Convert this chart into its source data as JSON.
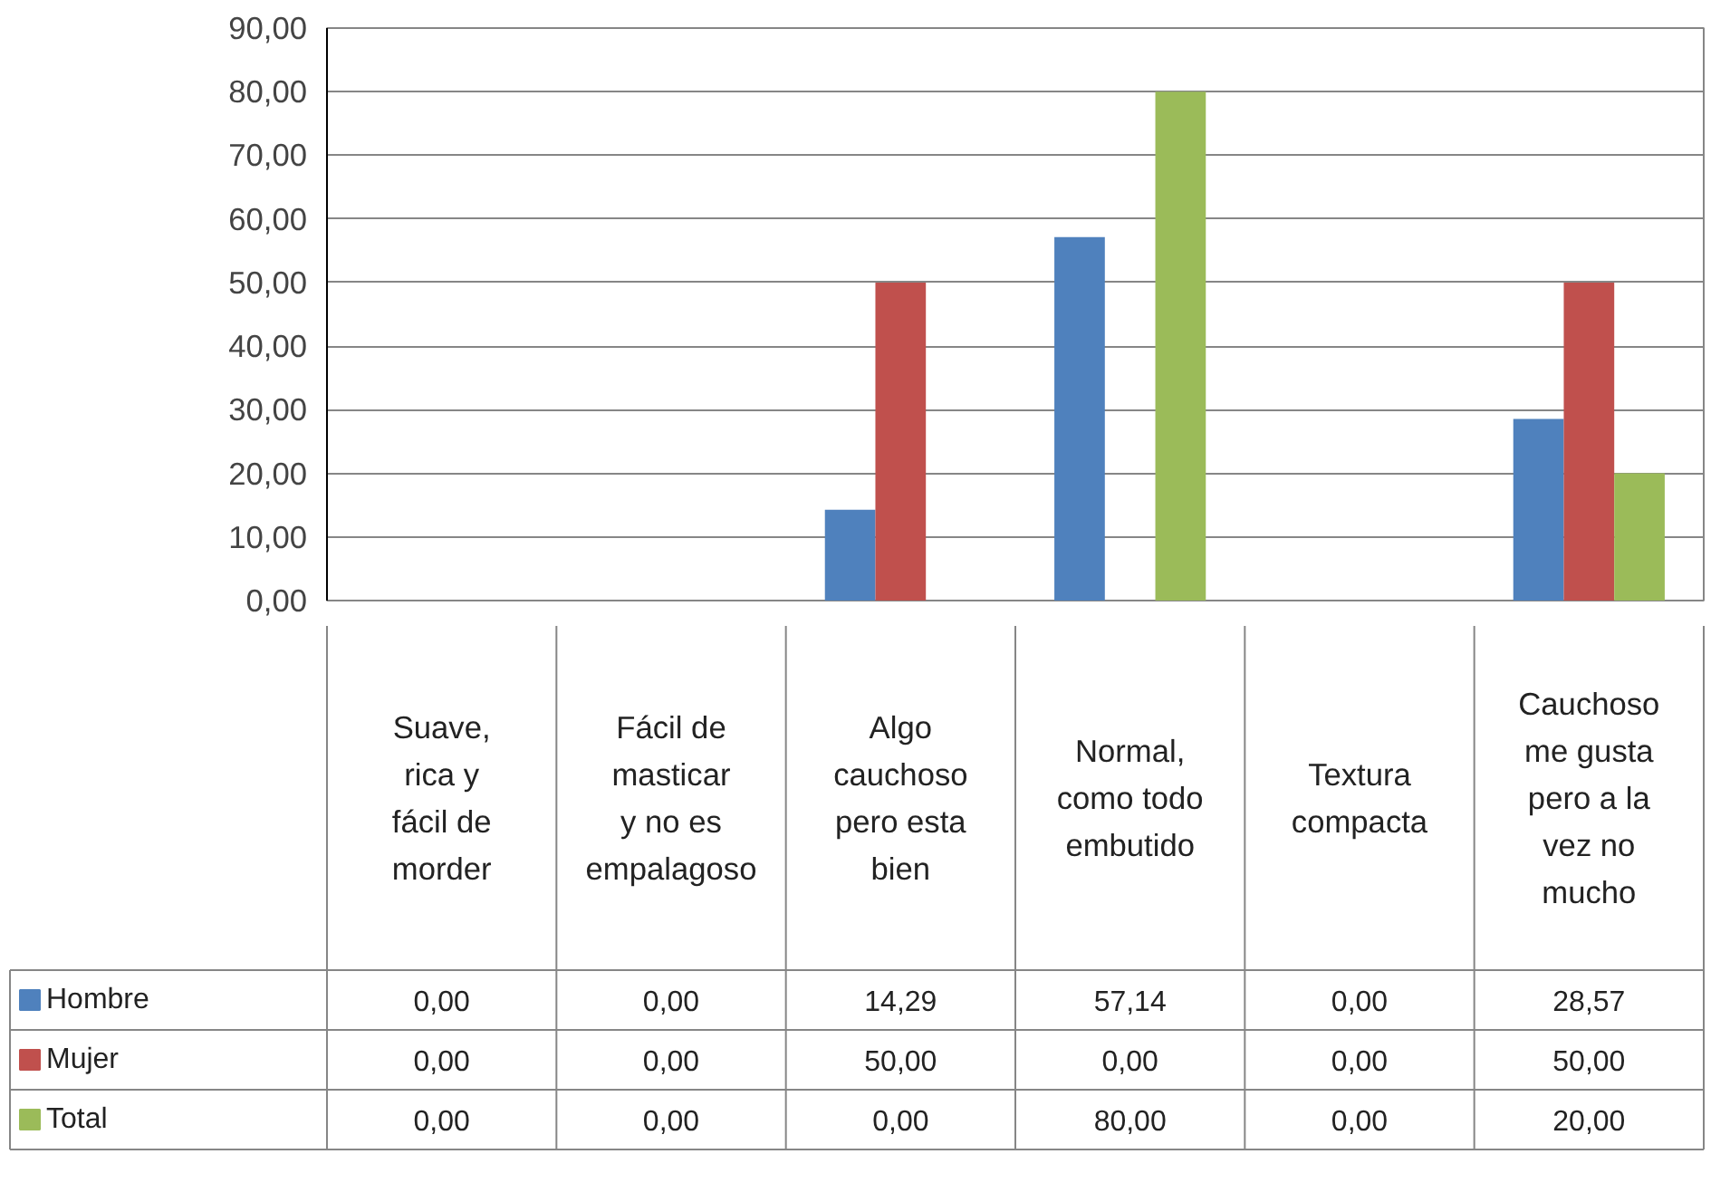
{
  "chart_data": {
    "type": "bar",
    "categories": [
      "Suave, rica y fácil de morder",
      "Fácil de masticar y no es empalagoso",
      "Algo cauchoso pero esta bien",
      "Normal, como todo embutido",
      "Textura compacta",
      "Cauchoso me gusta pero a la vez no mucho"
    ],
    "series": [
      {
        "name": "Hombre",
        "color": "#4f81bd",
        "values": [
          0,
          0,
          14.29,
          57.14,
          0,
          28.57
        ],
        "value_labels": [
          "0,00",
          "0,00",
          "14,29",
          "57,14",
          "0,00",
          "28,57"
        ]
      },
      {
        "name": "Mujer",
        "color": "#c0504d",
        "values": [
          0,
          0,
          50,
          0,
          0,
          50
        ],
        "value_labels": [
          "0,00",
          "0,00",
          "50,00",
          "0,00",
          "0,00",
          "50,00"
        ]
      },
      {
        "name": "Total",
        "color": "#9bbb59",
        "values": [
          0,
          0,
          0,
          80,
          0,
          20
        ],
        "value_labels": [
          "0,00",
          "0,00",
          "0,00",
          "80,00",
          "0,00",
          "20,00"
        ]
      }
    ],
    "ylim": [
      0,
      90
    ],
    "yticks": [
      {
        "value": 0,
        "label": "0,00"
      },
      {
        "value": 10,
        "label": "10,00"
      },
      {
        "value": 20,
        "label": "20,00"
      },
      {
        "value": 30,
        "label": "30,00"
      },
      {
        "value": 40,
        "label": "40,00"
      },
      {
        "value": 50,
        "label": "50,00"
      },
      {
        "value": 60,
        "label": "60,00"
      },
      {
        "value": 70,
        "label": "70,00"
      },
      {
        "value": 80,
        "label": "80,00"
      },
      {
        "value": 90,
        "label": "90,00"
      }
    ],
    "grid": "y",
    "legend": "bottom"
  }
}
